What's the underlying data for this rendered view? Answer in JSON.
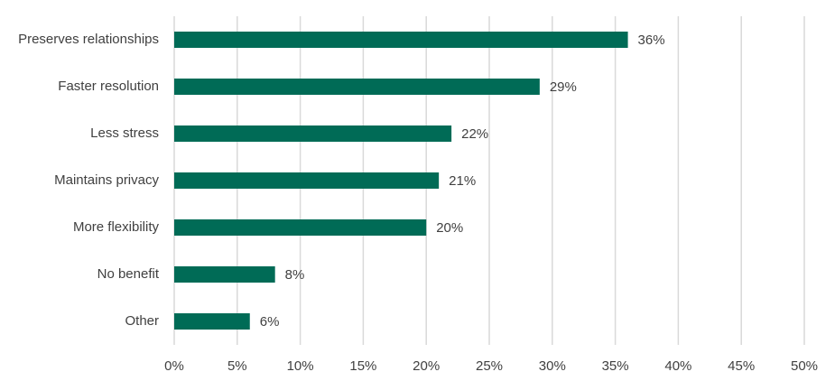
{
  "chart_data": {
    "type": "bar",
    "orientation": "horizontal",
    "categories": [
      "Preserves relationships",
      "Faster resolution",
      "Less stress",
      "Maintains privacy",
      "More flexibility",
      "No benefit",
      "Other"
    ],
    "values": [
      36,
      29,
      22,
      21,
      20,
      8,
      6
    ],
    "value_labels": [
      "36%",
      "29%",
      "22%",
      "21%",
      "20%",
      "8%",
      "6%"
    ],
    "color": "#006b56",
    "xlim": [
      0,
      50
    ],
    "xticks": [
      {
        "value": 0,
        "label": "0%"
      },
      {
        "value": 5,
        "label": "5%"
      },
      {
        "value": 10,
        "label": "10%"
      },
      {
        "value": 15,
        "label": "15%"
      },
      {
        "value": 20,
        "label": "20%"
      },
      {
        "value": 25,
        "label": "25%"
      },
      {
        "value": 30,
        "label": "30%"
      },
      {
        "value": 35,
        "label": "35%"
      },
      {
        "value": 40,
        "label": "40%"
      },
      {
        "value": 45,
        "label": "45%"
      },
      {
        "value": 50,
        "label": "50%"
      }
    ],
    "grid": true
  }
}
